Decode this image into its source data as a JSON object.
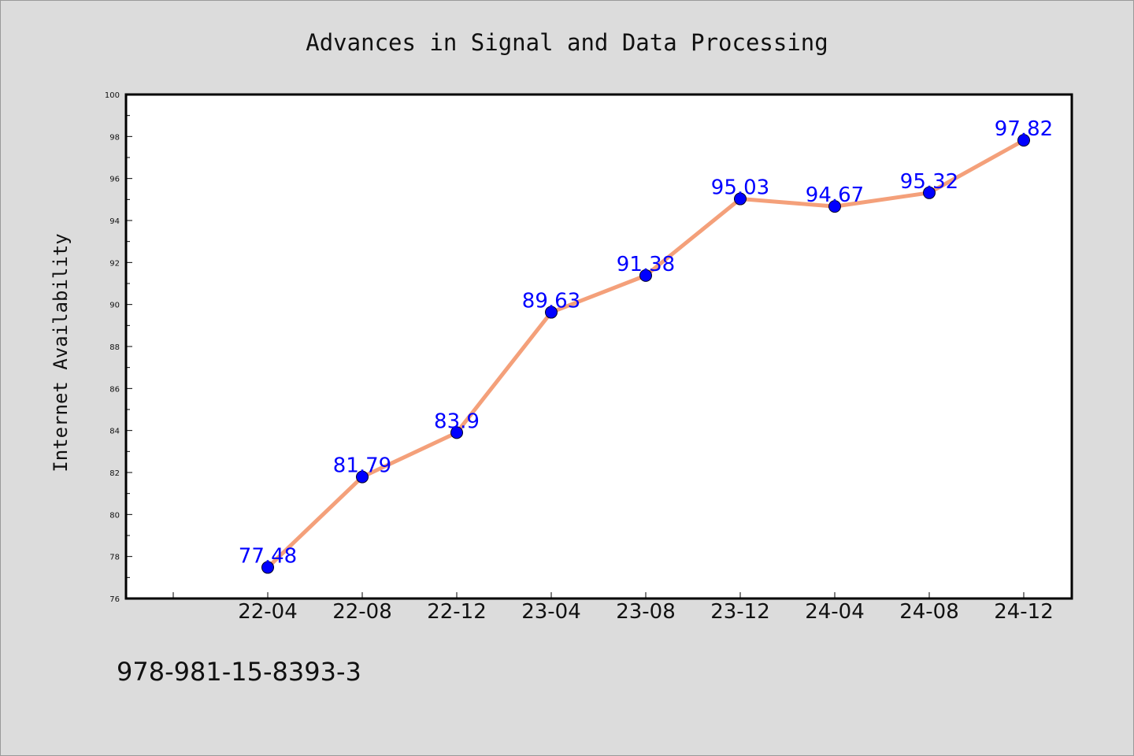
{
  "chart_data": {
    "type": "line",
    "title": "Advances in Signal and Data Processing",
    "xlabel": "",
    "ylabel": "Internet Availability",
    "categories": [
      "22-04",
      "22-08",
      "22-12",
      "23-04",
      "23-08",
      "23-12",
      "24-04",
      "24-08",
      "24-12"
    ],
    "values": [
      77.48,
      81.79,
      83.9,
      89.63,
      91.38,
      95.03,
      94.67,
      95.32,
      97.82
    ],
    "data_labels": [
      "77.48",
      "81.79",
      "83.9",
      "89.63",
      "91.38",
      "95.03",
      "94.67",
      "95.32",
      "97.82"
    ],
    "ylim": [
      76,
      100
    ],
    "yticks": [
      "76",
      "78",
      "80",
      "82",
      "84",
      "86",
      "88",
      "90",
      "92",
      "94",
      "96",
      "98",
      "100"
    ],
    "grid": false,
    "line_color": "#f4a07a",
    "marker_color": "#0000ff"
  },
  "footer": {
    "isbn": "978-981-15-8393-3"
  }
}
